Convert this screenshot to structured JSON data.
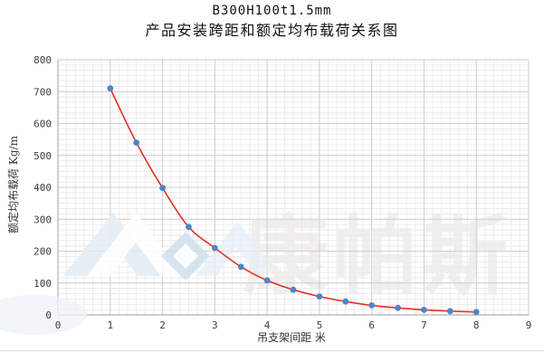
{
  "title": {
    "line1": "B300H100t1.5mm",
    "line2": "产品安装跨距和额定均布载荷关系图"
  },
  "watermark": {
    "text": "康帕斯"
  },
  "chart_data": {
    "type": "scatter",
    "series": [
      {
        "name": "额定均布载荷",
        "x": [
          1,
          1.5,
          2,
          2.5,
          3,
          3.5,
          4,
          4.5,
          5,
          5.5,
          6,
          6.5,
          7,
          7.5,
          8
        ],
        "y": [
          710,
          540,
          398,
          276,
          210,
          151,
          108,
          79,
          58,
          42,
          30,
          22,
          16,
          12,
          9
        ]
      }
    ],
    "trendline": true,
    "title": "B300H100t1.5mm 产品安装跨距和额定均布载荷关系图",
    "xlabel": "吊支架间距 米",
    "ylabel": "额定均布载荷 Kg/m",
    "xlim": [
      0,
      9
    ],
    "ylim": [
      0,
      800
    ],
    "x_ticks": [
      0,
      1,
      2,
      3,
      4,
      5,
      6,
      7,
      8,
      9
    ],
    "y_ticks": [
      0,
      100,
      200,
      300,
      400,
      500,
      600,
      700,
      800
    ],
    "minor_divisions": 6,
    "grid": "major+minor",
    "legend": "none",
    "colors": {
      "marker": "#4d86c6",
      "trend": "#e53126",
      "grid_major": "#cfcfcf",
      "grid_minor": "#ececec",
      "axis_line": "#b0b0b0",
      "watermark_blue": "#d9e6f2"
    }
  }
}
